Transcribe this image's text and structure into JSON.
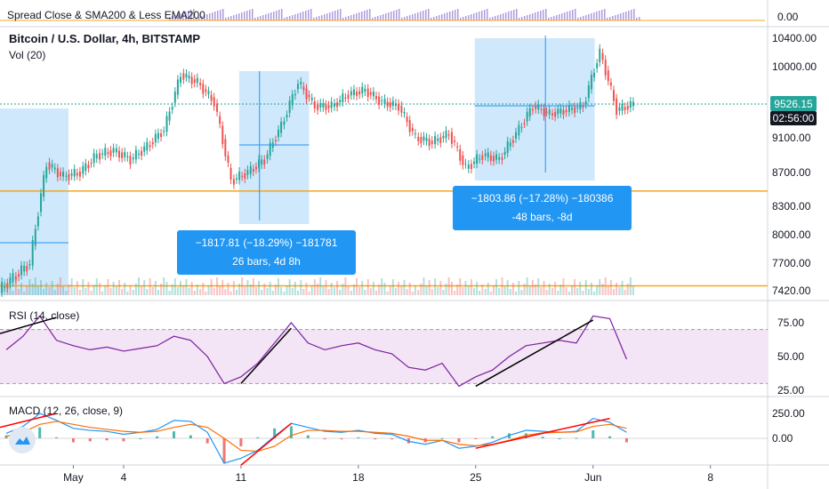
{
  "panels": {
    "top_strip": {
      "title": "Spread Close & SMA200 & Less EMA200",
      "axis_label": "0.00"
    },
    "main": {
      "title": "Bitcoin / U.S. Dollar, 4h, BITSTAMP",
      "volume_label": "Vol (20)",
      "price_badge": "9526.15",
      "countdown_badge": "02:56:00"
    },
    "rsi": {
      "title": "RSI (14, close)"
    },
    "macd": {
      "title": "MACD (12, 26, close, 9)"
    }
  },
  "colors": {
    "up": "#26a69a",
    "down": "#ef5350",
    "orange_line": "#f5a623",
    "range_fill": "#bbdefb",
    "range_arrow": "#2196f3",
    "tooltip_bg": "#2196f3",
    "rsi_line": "#7b1fa2",
    "rsi_band": "#f3e5f5",
    "macd_line": "#2196f3",
    "signal_line": "#ff6d00",
    "trend_black": "#000000",
    "trend_red": "#ff0000",
    "badge_green": "#26a69a"
  },
  "chart_data": [
    {
      "type": "line",
      "name": "main-price",
      "title": "Bitcoin / U.S. Dollar, 4h, BITSTAMP",
      "x": [
        "2020-04-27",
        "2020-04-28",
        "2020-04-29",
        "2020-04-30",
        "2020-05-01",
        "2020-05-02",
        "2020-05-03",
        "2020-05-04",
        "2020-05-05",
        "2020-05-06",
        "2020-05-07",
        "2020-05-08",
        "2020-05-09",
        "2020-05-10",
        "2020-05-11",
        "2020-05-12",
        "2020-05-13",
        "2020-05-14",
        "2020-05-15",
        "2020-05-16",
        "2020-05-17",
        "2020-05-18",
        "2020-05-19",
        "2020-05-20",
        "2020-05-21",
        "2020-05-22",
        "2020-05-23",
        "2020-05-24",
        "2020-05-25",
        "2020-05-26",
        "2020-05-27",
        "2020-05-28",
        "2020-05-29",
        "2020-05-30",
        "2020-05-31",
        "2020-06-01",
        "2020-06-02",
        "2020-06-03"
      ],
      "close": [
        7550,
        7700,
        8800,
        8650,
        8700,
        8900,
        8950,
        8850,
        9000,
        9200,
        9900,
        9800,
        9550,
        8600,
        8700,
        8850,
        9250,
        9800,
        9500,
        9500,
        9650,
        9700,
        9550,
        9500,
        9100,
        9050,
        9150,
        8750,
        8900,
        8850,
        9150,
        9500,
        9400,
        9450,
        9500,
        10200,
        9450,
        9526.15
      ],
      "x_tick_labels": [
        "May",
        "4",
        "11",
        "18",
        "25",
        "Jun",
        "8"
      ],
      "x_tick_dates": [
        "2020-05-01",
        "2020-05-04",
        "2020-05-11",
        "2020-05-18",
        "2020-05-25",
        "2020-06-01",
        "2020-06-08"
      ],
      "y_tick_labels": [
        "10400.00",
        "10000.00",
        "9100.00",
        "8700.00",
        "8300.00",
        "8000.00",
        "7700.00",
        "7420.00"
      ],
      "y_ticks": [
        10400,
        10000,
        9100,
        8700,
        8300,
        8000,
        7700,
        7420
      ],
      "horizontal_lines": [
        8480,
        7470
      ],
      "last_price": 9526.15,
      "volume_label": "Vol (20)",
      "measurements": [
        {
          "from_date": "2020-05-11",
          "to_date": "2020-05-14",
          "from_price": 9900,
          "to_price": 8080,
          "change_text": "−1817.81 (−18.29%) −181781",
          "bars_text": "26 bars, 4d 8h"
        },
        {
          "from_date": "2020-05-25",
          "to_date": "2020-06-02",
          "from_price": 10400,
          "to_price": 8600,
          "change_text": "−1803.86 (−17.28%) −180386",
          "bars_text": "-48 bars, -8d"
        }
      ]
    },
    {
      "type": "line",
      "name": "rsi",
      "title": "RSI (14, close)",
      "values": [
        55,
        65,
        80,
        62,
        58,
        55,
        57,
        54,
        56,
        58,
        65,
        62,
        50,
        30,
        35,
        45,
        60,
        75,
        60,
        55,
        58,
        60,
        55,
        52,
        42,
        40,
        45,
        28,
        35,
        40,
        50,
        58,
        60,
        62,
        60,
        80,
        78,
        48
      ],
      "y_tick_labels": [
        "75.00",
        "50.00",
        "25.00"
      ],
      "y_ticks": [
        75,
        50,
        25
      ],
      "band": [
        30,
        70
      ]
    },
    {
      "type": "line",
      "name": "macd",
      "title": "MACD (12, 26, close, 9)",
      "macd": [
        50,
        120,
        250,
        180,
        100,
        80,
        70,
        40,
        60,
        90,
        180,
        170,
        60,
        -250,
        -200,
        -120,
        20,
        150,
        110,
        70,
        60,
        80,
        50,
        40,
        -30,
        -60,
        -20,
        -100,
        -80,
        -40,
        30,
        80,
        70,
        60,
        70,
        200,
        160,
        60
      ],
      "signal": [
        20,
        60,
        140,
        170,
        140,
        110,
        90,
        70,
        60,
        70,
        110,
        140,
        110,
        0,
        -120,
        -130,
        -80,
        30,
        80,
        80,
        70,
        70,
        60,
        50,
        20,
        -20,
        -20,
        -60,
        -75,
        -60,
        -20,
        30,
        55,
        60,
        65,
        120,
        140,
        100
      ],
      "y_tick_labels": [
        "250.00",
        "0.00"
      ],
      "y_ticks": [
        250,
        0
      ]
    }
  ]
}
